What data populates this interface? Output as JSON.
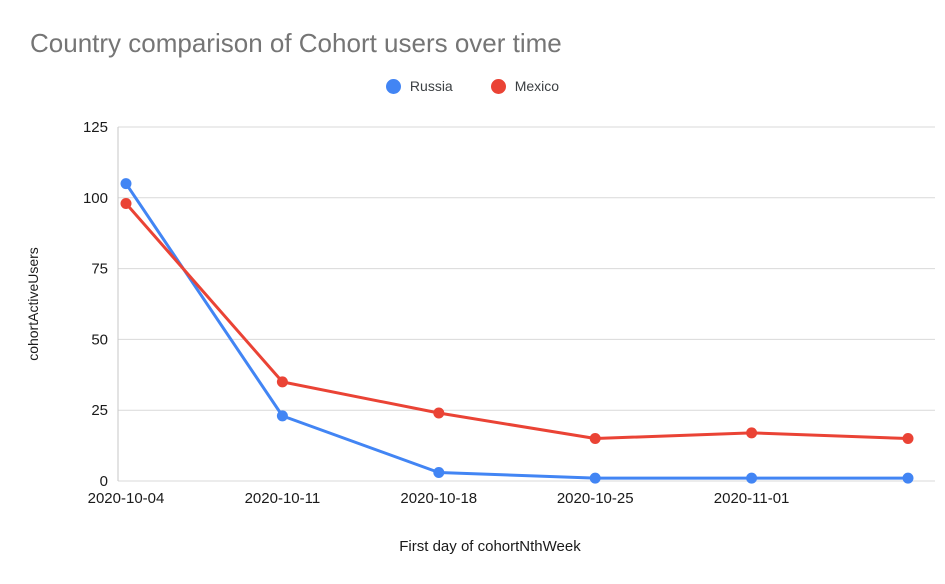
{
  "title": "Country comparison of Cohort users over time",
  "chart_data": {
    "type": "line",
    "x": [
      "2020-10-04",
      "2020-10-11",
      "2020-10-18",
      "2020-10-25",
      "2020-11-01",
      ""
    ],
    "series": [
      {
        "name": "Russia",
        "color": "#4285F4",
        "values": [
          105,
          23,
          3,
          1,
          1,
          1
        ]
      },
      {
        "name": "Mexico",
        "color": "#EA4335",
        "values": [
          98,
          35,
          24,
          15,
          17,
          15
        ]
      }
    ],
    "xlabel": "First day of cohortNthWeek",
    "ylabel": "cohortActiveUsers",
    "ylim": [
      0,
      125
    ],
    "yticks": [
      0,
      25,
      50,
      75,
      100,
      125
    ],
    "grid": true,
    "legend_position": "top"
  }
}
